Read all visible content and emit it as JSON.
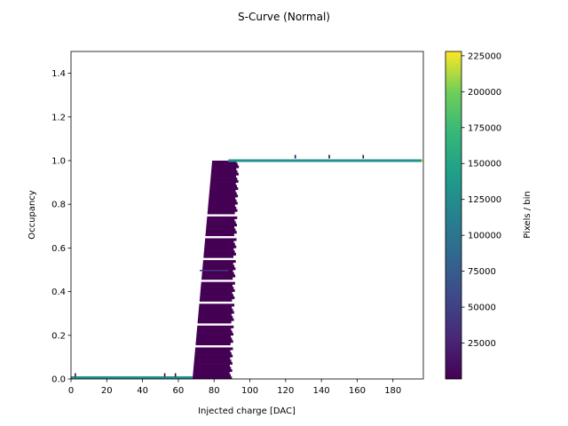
{
  "chart_data": {
    "type": "heatmap",
    "title": "S-Curve (Normal)",
    "xlabel": "Injected charge [DAC]",
    "ylabel": "Occupancy",
    "xlim": [
      0,
      197
    ],
    "ylim": [
      0,
      1.5
    ],
    "x_ticks": [
      0,
      20,
      40,
      60,
      80,
      100,
      120,
      140,
      160,
      180
    ],
    "y_ticks": [
      0.0,
      0.2,
      0.4,
      0.6,
      0.8,
      1.0,
      1.2,
      1.4
    ],
    "y_tick_labels": [
      "0.0",
      "0.2",
      "0.4",
      "0.6",
      "0.8",
      "1.0",
      "1.2",
      "1.4"
    ],
    "colorbar": {
      "label": "Pixels / bin",
      "colormap": "viridis",
      "range": [
        1,
        228000
      ],
      "ticks": [
        25000,
        50000,
        75000,
        100000,
        125000,
        150000,
        175000,
        200000,
        225000
      ]
    },
    "regions": [
      {
        "name": "low-plateau",
        "x": [
          0,
          68
        ],
        "y": 0.0,
        "counts": 120000
      },
      {
        "name": "transition",
        "x_at_y0": [
          68,
          90
        ],
        "x_at_y1": [
          79,
          94
        ],
        "counts": 5000
      },
      {
        "name": "high-plateau",
        "x": [
          88,
          197
        ],
        "y": 1.0,
        "counts": 120000
      }
    ]
  },
  "colors": {
    "viridis_dark": "#440154",
    "viridis_mid": "#21918c",
    "viridis_top": "#fde725"
  }
}
